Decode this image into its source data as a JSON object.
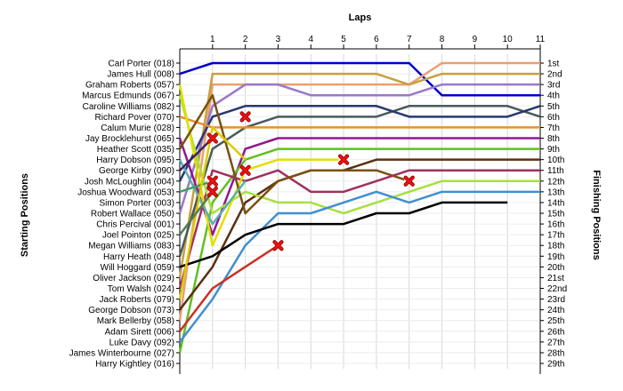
{
  "chart_data": {
    "type": "line",
    "title": "",
    "x_label": "Laps",
    "y_left_label": "Starting Positions",
    "y_right_label": "Finishing Positions",
    "x_ticks": [
      1,
      2,
      3,
      4,
      5,
      6,
      7,
      8,
      9,
      10,
      11
    ],
    "x_range": [
      0,
      11
    ],
    "y_range": [
      1,
      29
    ],
    "starting_labels": [
      "Carl Porter (018)",
      "James Hull (008)",
      "Graham Roberts (057)",
      "Marcus Edmunds (067)",
      "Caroline Williams (082)",
      "Richard Pover (070)",
      "Calum Murie (028)",
      "Jay Brocklehurst (065)",
      "Heather Scott (035)",
      "Harry Dobson (095)",
      "George Kirby (090)",
      "Josh McLoughlin (004)",
      "Joshua Woodward (053)",
      "Simon Porter (003)",
      "Robert Wallace (050)",
      "Chris Percival (001)",
      "Joel Pointon (025)",
      "Megan Williams (083)",
      "Harry Heath (048)",
      "Will Hoggard (059)",
      "Oliver Jackson (029)",
      "Tom Walsh (024)",
      "Jack Roberts (079)",
      "George Dobson (073)",
      "Mark Bellerby (058)",
      "Adam Sirett (006)",
      "Luke Davy (092)",
      "James Winterbourne (027)",
      "Harry Kightley (016)"
    ],
    "finishing_labels": [
      "1st",
      "2nd",
      "3rd",
      "4th",
      "5th",
      "6th",
      "7th",
      "8th",
      "9th",
      "10th",
      "11th",
      "12th",
      "13th",
      "14th",
      "15th",
      "16th",
      "17th",
      "18th",
      "19th",
      "20th",
      "21st",
      "22nd",
      "23rd",
      "24th",
      "25th",
      "26th",
      "27th",
      "28th",
      "29th"
    ],
    "series": [
      {
        "color": "#0000cc",
        "positions": [
          2,
          1,
          1,
          1,
          1,
          1,
          1,
          1,
          4,
          4,
          4,
          4
        ]
      },
      {
        "color": "#e8a070",
        "positions": [
          25,
          3,
          3,
          3,
          3,
          3,
          3,
          3,
          1,
          1,
          1,
          1
        ]
      },
      {
        "color": "#c8a040",
        "positions": [
          21,
          2,
          2,
          2,
          2,
          2,
          2,
          3,
          2,
          2,
          2,
          2
        ]
      },
      {
        "color": "#9a78c8",
        "positions": [
          15,
          5,
          3,
          3,
          4,
          4,
          4,
          4,
          3,
          3,
          3,
          3
        ]
      },
      {
        "color": "#4a5a5a",
        "positions": [
          19,
          9,
          7,
          6,
          6,
          6,
          6,
          5,
          5,
          5,
          5,
          6
        ]
      },
      {
        "color": "#283870",
        "positions": [
          12,
          6,
          5,
          5,
          5,
          5,
          5,
          6,
          6,
          6,
          6,
          5
        ]
      },
      {
        "color": "#e89030",
        "positions": [
          6,
          7,
          7,
          7,
          7,
          7,
          7,
          7,
          7,
          7,
          7,
          7
        ]
      },
      {
        "color": "#901890",
        "positions": [
          8,
          17,
          9,
          8,
          8,
          8,
          8,
          8,
          8,
          8,
          8,
          8
        ]
      },
      {
        "color": "#60c020",
        "positions": [
          28,
          14,
          10,
          9,
          9,
          9,
          9,
          9,
          9,
          9,
          9,
          9
        ]
      },
      {
        "color": "#5a3010",
        "positions": [
          24,
          20,
          14,
          12,
          11,
          11,
          10,
          10,
          10,
          10,
          10,
          10
        ]
      },
      {
        "color": "#a03060",
        "positions": [
          22,
          11,
          12,
          11,
          13,
          13,
          12,
          11,
          11,
          11,
          11,
          11
        ]
      },
      {
        "color": "#a8e040",
        "positions": [
          4,
          15,
          13,
          14,
          14,
          15,
          14,
          13,
          12,
          12,
          12,
          12
        ]
      },
      {
        "color": "#4090d0",
        "positions": [
          27,
          23,
          18,
          15,
          15,
          14,
          13,
          14,
          13,
          13,
          13,
          13
        ]
      },
      {
        "color": "#000000",
        "positions": [
          20,
          19,
          17,
          16,
          16,
          16,
          15,
          15,
          14,
          14,
          14
        ]
      },
      {
        "color": "#e0e000",
        "positions": [
          3,
          18,
          11,
          10,
          10,
          10
        ]
      },
      {
        "color": "#7a5010",
        "positions": [
          9,
          4,
          15,
          12,
          11,
          11,
          11,
          12
        ]
      },
      {
        "color": "#c83228",
        "positions": [
          26,
          22,
          20,
          18
        ]
      },
      {
        "color": "#58b0b0",
        "positions": [
          10,
          16,
          12
        ]
      },
      {
        "color": "#40a060",
        "positions": [
          13,
          12
        ]
      },
      {
        "color": "#ddcc00",
        "positions": [
          23,
          7,
          10
        ]
      },
      {
        "color": "#508050",
        "positions": [
          17,
          13
        ]
      },
      {
        "color": "#402060",
        "positions": [
          11,
          8
        ]
      }
    ],
    "retirements": [
      {
        "lap": 1,
        "position": 8
      },
      {
        "lap": 1,
        "position": 12
      },
      {
        "lap": 1,
        "position": 13
      },
      {
        "lap": 2,
        "position": 6
      },
      {
        "lap": 2,
        "position": 11
      },
      {
        "lap": 3,
        "position": 18
      },
      {
        "lap": 5,
        "position": 10
      },
      {
        "lap": 7,
        "position": 12
      }
    ],
    "grid": true
  }
}
